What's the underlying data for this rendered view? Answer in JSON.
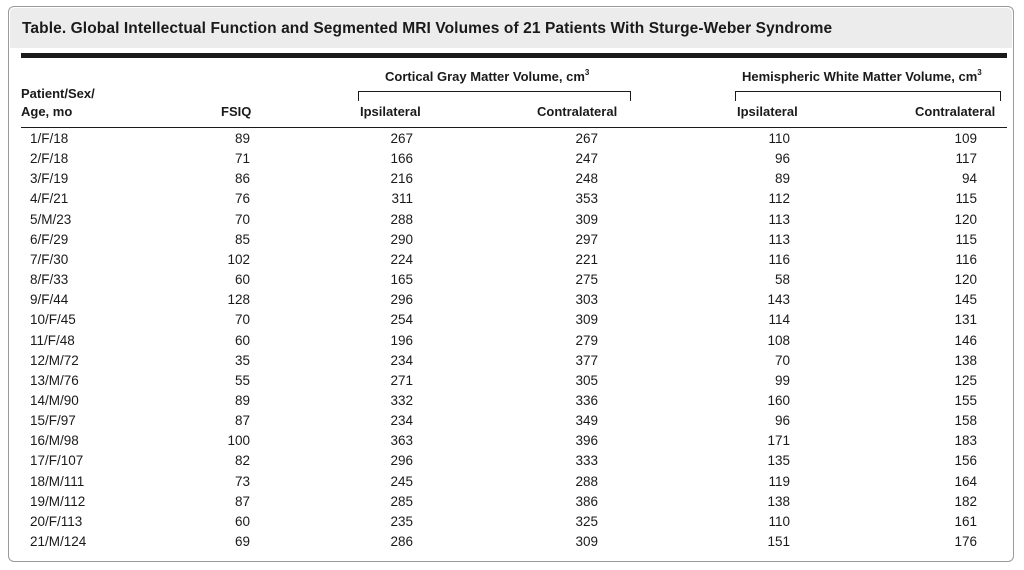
{
  "title": "Table. Global Intellectual Function and Segmented MRI Volumes of 21 Patients With Sturge-Weber Syndrome",
  "headers": {
    "patient_line1": "Patient/Sex/",
    "patient_line2": "Age, mo",
    "fsiq": "FSIQ",
    "gray_group": "Cortical Gray Matter Volume, cm",
    "white_group": "Hemispheric White Matter Volume, cm",
    "unit_exponent": "3",
    "ipsilateral": "Ipsilateral",
    "contralateral": "Contralateral"
  },
  "rows": [
    {
      "patient": "1/F/18",
      "fsiq": "89",
      "gray_ipsi": "267",
      "gray_contra": "267",
      "white_ipsi": "110",
      "white_contra": "109"
    },
    {
      "patient": "2/F/18",
      "fsiq": "71",
      "gray_ipsi": "166",
      "gray_contra": "247",
      "white_ipsi": "96",
      "white_contra": "117"
    },
    {
      "patient": "3/F/19",
      "fsiq": "86",
      "gray_ipsi": "216",
      "gray_contra": "248",
      "white_ipsi": "89",
      "white_contra": "94"
    },
    {
      "patient": "4/F/21",
      "fsiq": "76",
      "gray_ipsi": "311",
      "gray_contra": "353",
      "white_ipsi": "112",
      "white_contra": "115"
    },
    {
      "patient": "5/M/23",
      "fsiq": "70",
      "gray_ipsi": "288",
      "gray_contra": "309",
      "white_ipsi": "113",
      "white_contra": "120"
    },
    {
      "patient": "6/F/29",
      "fsiq": "85",
      "gray_ipsi": "290",
      "gray_contra": "297",
      "white_ipsi": "113",
      "white_contra": "115"
    },
    {
      "patient": "7/F/30",
      "fsiq": "102",
      "gray_ipsi": "224",
      "gray_contra": "221",
      "white_ipsi": "116",
      "white_contra": "116"
    },
    {
      "patient": "8/F/33",
      "fsiq": "60",
      "gray_ipsi": "165",
      "gray_contra": "275",
      "white_ipsi": "58",
      "white_contra": "120"
    },
    {
      "patient": "9/F/44",
      "fsiq": "128",
      "gray_ipsi": "296",
      "gray_contra": "303",
      "white_ipsi": "143",
      "white_contra": "145"
    },
    {
      "patient": "10/F/45",
      "fsiq": "70",
      "gray_ipsi": "254",
      "gray_contra": "309",
      "white_ipsi": "114",
      "white_contra": "131"
    },
    {
      "patient": "11/F/48",
      "fsiq": "60",
      "gray_ipsi": "196",
      "gray_contra": "279",
      "white_ipsi": "108",
      "white_contra": "146"
    },
    {
      "patient": "12/M/72",
      "fsiq": "35",
      "gray_ipsi": "234",
      "gray_contra": "377",
      "white_ipsi": "70",
      "white_contra": "138"
    },
    {
      "patient": "13/M/76",
      "fsiq": "55",
      "gray_ipsi": "271",
      "gray_contra": "305",
      "white_ipsi": "99",
      "white_contra": "125"
    },
    {
      "patient": "14/M/90",
      "fsiq": "89",
      "gray_ipsi": "332",
      "gray_contra": "336",
      "white_ipsi": "160",
      "white_contra": "155"
    },
    {
      "patient": "15/F/97",
      "fsiq": "87",
      "gray_ipsi": "234",
      "gray_contra": "349",
      "white_ipsi": "96",
      "white_contra": "158"
    },
    {
      "patient": "16/M/98",
      "fsiq": "100",
      "gray_ipsi": "363",
      "gray_contra": "396",
      "white_ipsi": "171",
      "white_contra": "183"
    },
    {
      "patient": "17/F/107",
      "fsiq": "82",
      "gray_ipsi": "296",
      "gray_contra": "333",
      "white_ipsi": "135",
      "white_contra": "156"
    },
    {
      "patient": "18/M/111",
      "fsiq": "73",
      "gray_ipsi": "245",
      "gray_contra": "288",
      "white_ipsi": "119",
      "white_contra": "164"
    },
    {
      "patient": "19/M/112",
      "fsiq": "87",
      "gray_ipsi": "285",
      "gray_contra": "386",
      "white_ipsi": "138",
      "white_contra": "182"
    },
    {
      "patient": "20/F/113",
      "fsiq": "60",
      "gray_ipsi": "235",
      "gray_contra": "325",
      "white_ipsi": "110",
      "white_contra": "161"
    },
    {
      "patient": "21/M/124",
      "fsiq": "69",
      "gray_ipsi": "286",
      "gray_contra": "309",
      "white_ipsi": "151",
      "white_contra": "176"
    }
  ]
}
